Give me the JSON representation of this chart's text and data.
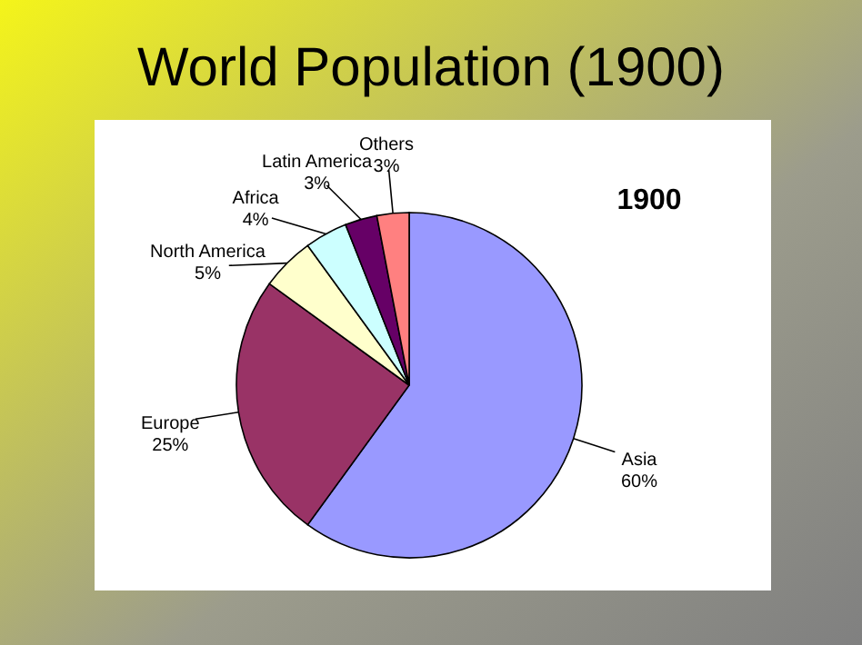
{
  "chart_data": {
    "type": "pie",
    "title": "World Population (1900)",
    "subtitle": "1900",
    "categories": [
      "Asia",
      "Europe",
      "North America",
      "Africa",
      "Latin America",
      "Others"
    ],
    "values": [
      60,
      25,
      5,
      4,
      3,
      3
    ],
    "value_labels": [
      "60%",
      "25%",
      "5%",
      "4%",
      "3%",
      "3%"
    ],
    "colors": [
      "#9999ff",
      "#993366",
      "#ffffcc",
      "#ccffff",
      "#660066",
      "#ff8080"
    ]
  }
}
